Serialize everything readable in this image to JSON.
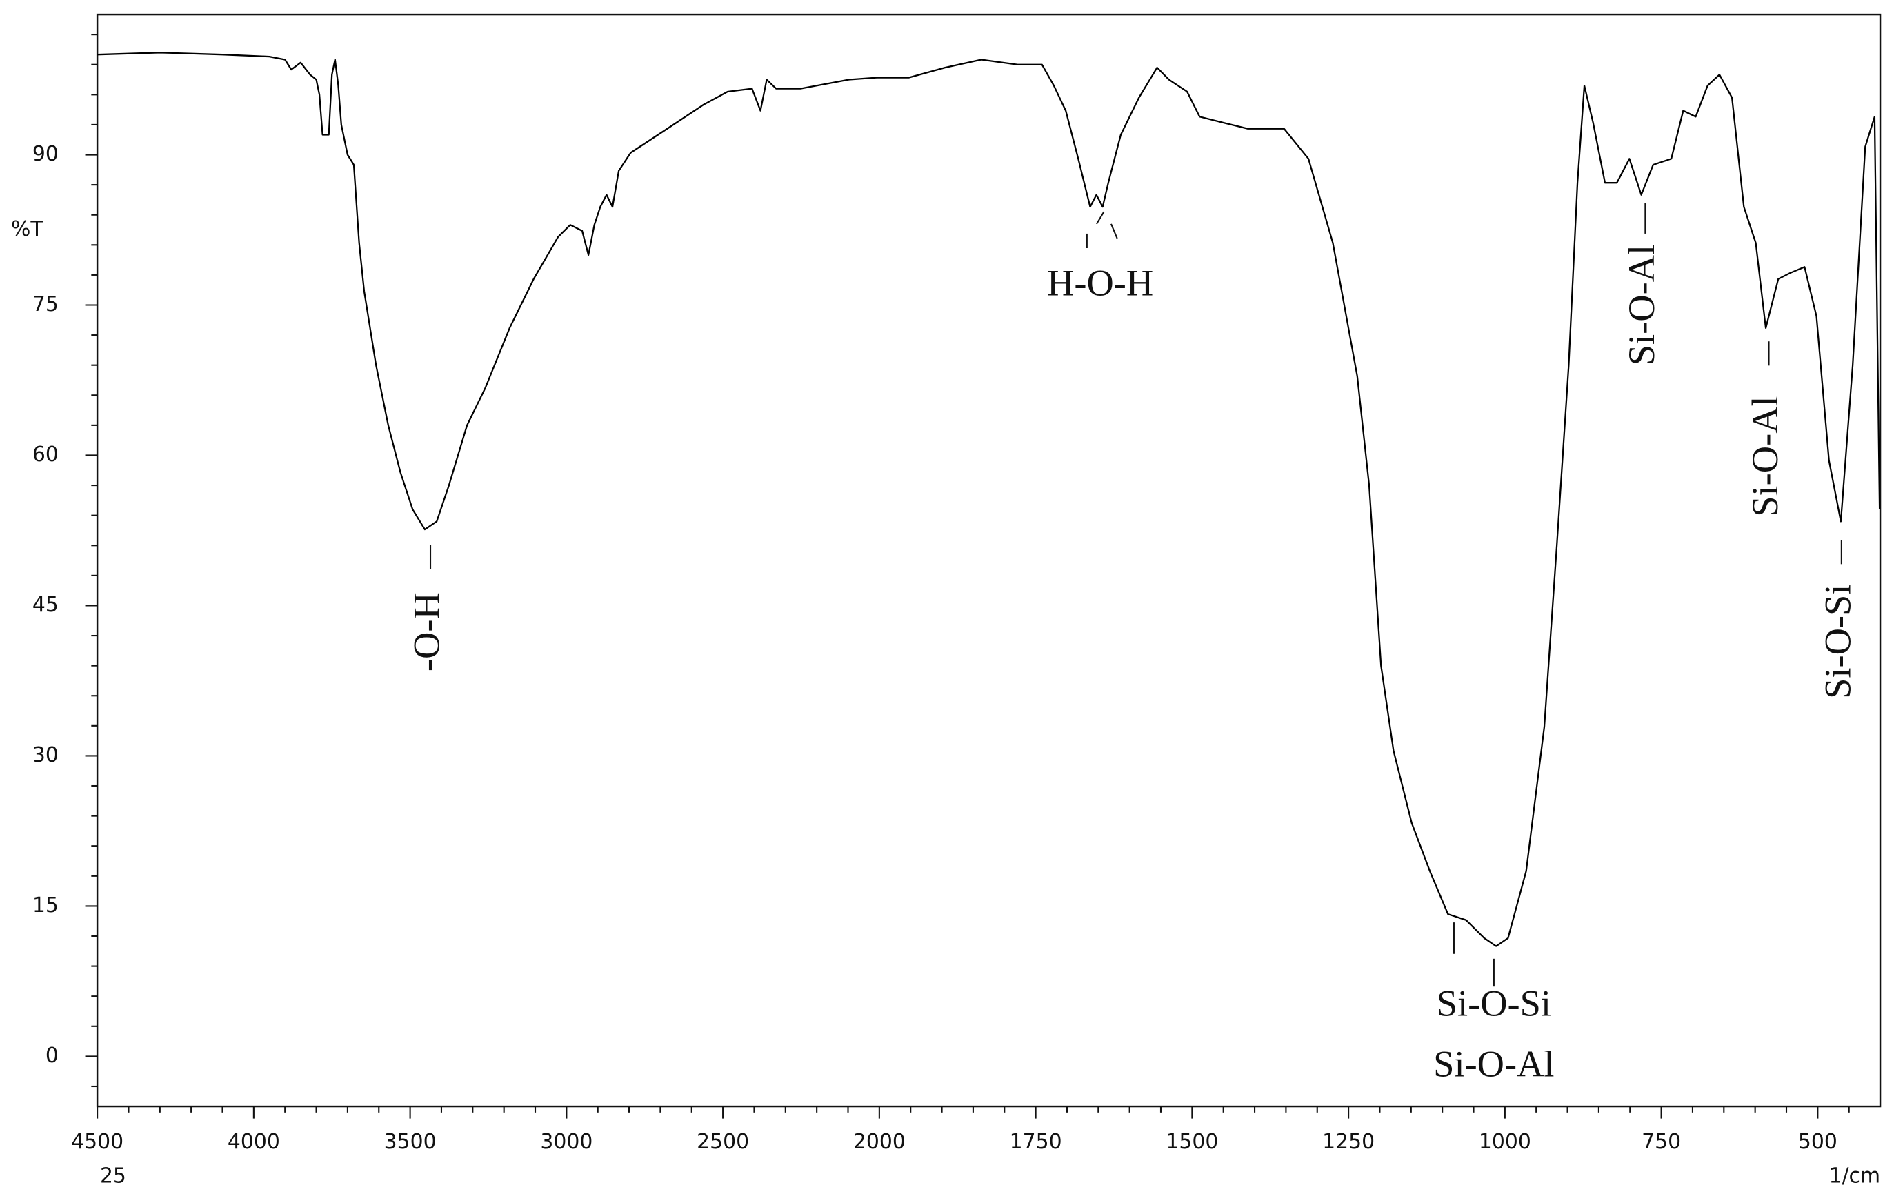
{
  "chart_data": {
    "type": "line",
    "y_label": "%T",
    "x_label": "1/cm",
    "corner_label": "25",
    "x": [
      4500,
      4300,
      4100,
      3950,
      3900,
      3880,
      3850,
      3820,
      3800,
      3790,
      3780,
      3760,
      3750,
      3740,
      3730,
      3720,
      3700,
      3680,
      3663,
      3647,
      3609,
      3570,
      3531,
      3492,
      3453,
      3415,
      3376,
      3318,
      3260,
      3182,
      3105,
      3027,
      2988,
      2950,
      2930,
      2911,
      2892,
      2872,
      2853,
      2833,
      2795,
      2678,
      2562,
      2485,
      2407,
      2380,
      2360,
      2330,
      2252,
      2097,
      2008,
      1953,
      1895,
      1837,
      1779,
      1740,
      1721,
      1702,
      1682,
      1663,
      1653,
      1643,
      1634,
      1614,
      1585,
      1556,
      1537,
      1508,
      1488,
      1450,
      1411,
      1353,
      1314,
      1275,
      1236,
      1217,
      1198,
      1178,
      1149,
      1120,
      1091,
      1062,
      1033,
      1014,
      995,
      966,
      937,
      917,
      898,
      884,
      873,
      859,
      840,
      821,
      801,
      782,
      763,
      734,
      715,
      695,
      676,
      657,
      637,
      618,
      599,
      583,
      563,
      544,
      521,
      502,
      482,
      463,
      444,
      424,
      409,
      401
    ],
    "series": [
      {
        "color": "#000000",
        "values": [
          100,
          100.2,
          100,
          99.8,
          99.5,
          98.5,
          99.2,
          98,
          97.5,
          96,
          92,
          92,
          98,
          99.5,
          97,
          93,
          90,
          89,
          81.2,
          76.4,
          69,
          63,
          58.3,
          54.6,
          52.6,
          53.4,
          57,
          63,
          66.7,
          72.7,
          77.6,
          81.8,
          83,
          82.4,
          80,
          83,
          84.8,
          86,
          84.8,
          88.4,
          90.2,
          92.6,
          95,
          96.3,
          96.6,
          94.4,
          97.5,
          96.6,
          96.6,
          97.5,
          97.7,
          97.7,
          98.7,
          99.5,
          99,
          99,
          96.9,
          94.4,
          89.6,
          84.8,
          86,
          84.8,
          87.2,
          92,
          95.7,
          98.7,
          97.5,
          96.3,
          93.8,
          93.2,
          92.6,
          92.6,
          89.6,
          81.2,
          67.9,
          57,
          39,
          30.5,
          23.3,
          18.5,
          14.2,
          13.6,
          11.8,
          11,
          11.8,
          18.5,
          32.9,
          51,
          69,
          87.2,
          96.9,
          93.2,
          87.2,
          87.2,
          89.6,
          86,
          89,
          89.6,
          94.4,
          93.8,
          96.9,
          98,
          95.7,
          84.8,
          81.2,
          72.7,
          77.6,
          78.2,
          78.8,
          73.9,
          59.5,
          53.4,
          69,
          90.8,
          93.8,
          54.6
        ]
      }
    ],
    "xlim": [
      4500,
      400
    ],
    "x_break": 2000,
    "x_break_zoom": 2,
    "xticks": [
      4500,
      4000,
      3500,
      3000,
      2500,
      2000,
      1750,
      1500,
      1250,
      1000,
      750,
      500
    ],
    "xminorticks": [
      4400,
      4300,
      4200,
      4100,
      3900,
      3800,
      3700,
      3600,
      3400,
      3300,
      3200,
      3100,
      2900,
      2800,
      2700,
      2600,
      2400,
      2300,
      2200,
      2100,
      1950,
      1900,
      1850,
      1800,
      1700,
      1650,
      1600,
      1550,
      1450,
      1400,
      1350,
      1300,
      1200,
      1150,
      1100,
      1050,
      950,
      900,
      850,
      800,
      700,
      650,
      600,
      550,
      450
    ],
    "ylim": [
      -5,
      104
    ],
    "yticks": [
      0,
      15,
      30,
      45,
      60,
      75,
      90
    ],
    "yminorticks": [
      -3,
      3,
      6,
      9,
      12,
      18,
      21,
      24,
      27,
      33,
      36,
      39,
      42,
      48,
      51,
      54,
      57,
      63,
      66,
      69,
      72,
      78,
      81,
      84,
      87,
      93,
      96,
      99,
      102
    ],
    "annotations": [
      "-O-H",
      "H-O-H",
      "Si-O-Al",
      "Si-O-Si",
      "Si-O-Al",
      "Si-O-Al",
      "Si-O-Si"
    ]
  }
}
